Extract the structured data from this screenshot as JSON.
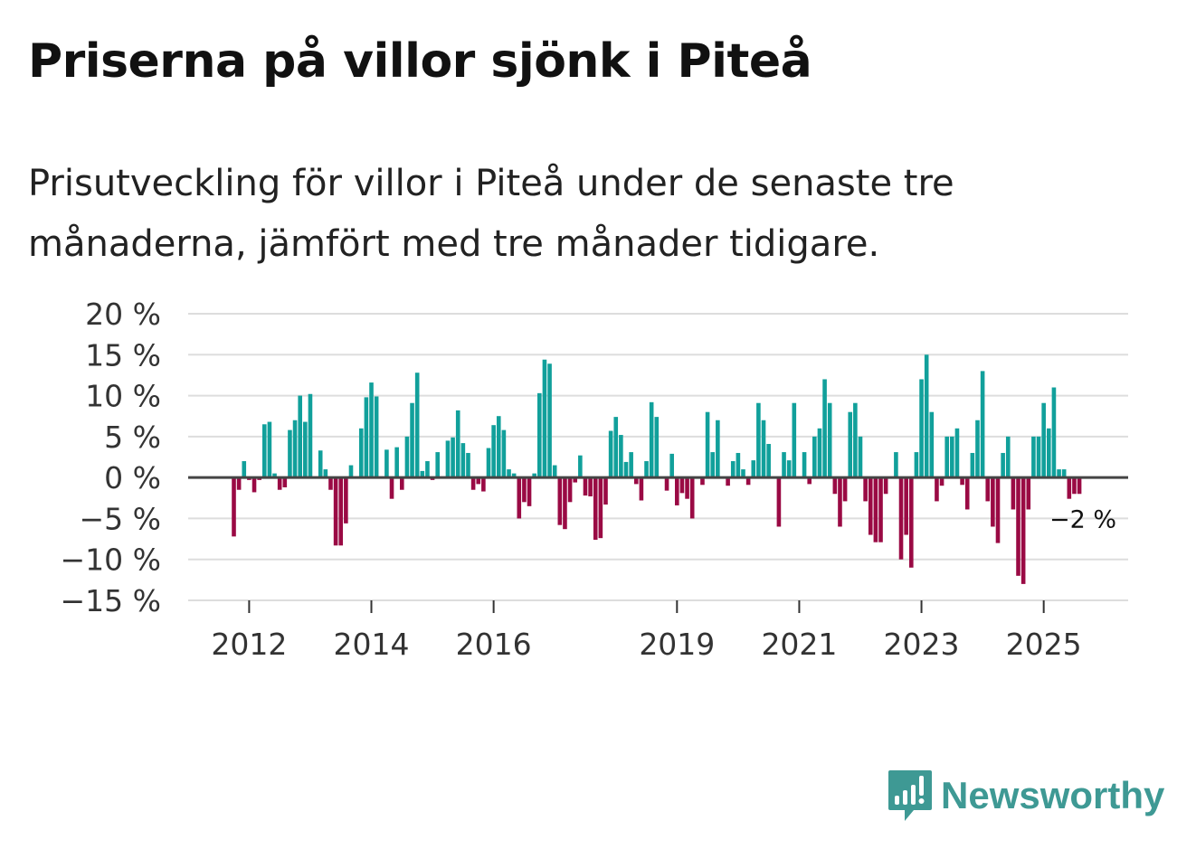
{
  "title": "Priserna på villor sjönk i Piteå",
  "subtitle": "Prisutveckling för villor i Piteå under de senaste tre månaderna, jämfört med tre månader tidigare.",
  "brand": {
    "name": "Newsworthy",
    "color": "#3e9994",
    "icon": "newsworthy-logo-icon"
  },
  "colors": {
    "positive": "#11a09b",
    "negative": "#9a0a44",
    "grid": "#dddddd",
    "zero_line": "#444444"
  },
  "chart_data": {
    "type": "bar",
    "title": "Priserna på villor sjönk i Piteå",
    "xlabel": "",
    "ylabel": "",
    "ylim": [
      -15,
      20
    ],
    "y_ticks": [
      20,
      15,
      10,
      5,
      0,
      -5,
      -10,
      -15
    ],
    "y_tick_labels": [
      "20 %",
      "15 %",
      "10 %",
      "5 %",
      "0 %",
      "−5 %",
      "−10 %",
      "−15 %"
    ],
    "x_ticks": [
      {
        "year": 2012,
        "label": "2012"
      },
      {
        "year": 2014,
        "label": "2014"
      },
      {
        "year": 2016,
        "label": "2016"
      },
      {
        "year": 2019,
        "label": "2019"
      },
      {
        "year": 2021,
        "label": "2021"
      },
      {
        "year": 2023,
        "label": "2023"
      },
      {
        "year": 2025,
        "label": "2025"
      }
    ],
    "start": {
      "year": 2011,
      "month": 10
    },
    "frequency": "monthly",
    "last_value_label": "−2 %",
    "values": [
      -7.2,
      -1.5,
      2.0,
      -0.3,
      -1.8,
      -0.3,
      6.5,
      6.8,
      0.5,
      -1.5,
      -1.2,
      5.8,
      7.0,
      10.0,
      6.8,
      10.2,
      0.0,
      3.3,
      1.0,
      -1.5,
      -8.3,
      -8.3,
      -5.6,
      1.5,
      0.0,
      6.0,
      9.8,
      11.6,
      9.9,
      0.0,
      3.4,
      -2.6,
      3.7,
      -1.5,
      5.0,
      9.1,
      12.8,
      0.8,
      2.0,
      -0.3,
      3.1,
      0.0,
      4.5,
      4.9,
      8.2,
      4.2,
      3.0,
      -1.5,
      -0.8,
      -1.7,
      3.6,
      6.4,
      7.5,
      5.8,
      1.0,
      0.5,
      -5.0,
      -3.0,
      -3.5,
      0.5,
      10.3,
      14.4,
      13.9,
      1.5,
      -5.8,
      -6.3,
      -3.0,
      -0.6,
      2.7,
      -2.2,
      -2.3,
      -7.6,
      -7.4,
      -3.3,
      5.7,
      7.4,
      5.2,
      1.9,
      3.1,
      -0.8,
      -2.8,
      2.0,
      9.2,
      7.4,
      0.0,
      -1.6,
      2.9,
      -3.4,
      -1.9,
      -2.6,
      -5.0,
      0.0,
      -0.9,
      8.0,
      3.1,
      7.0,
      0.0,
      -1.0,
      2.0,
      3.0,
      1.0,
      -0.9,
      2.1,
      9.1,
      7.0,
      4.1,
      0.0,
      -6.0,
      3.1,
      2.1,
      9.1,
      0.0,
      3.1,
      -0.8,
      5.0,
      6.0,
      12.0,
      9.1,
      -2.0,
      -6.0,
      -2.9,
      8.0,
      9.1,
      5.0,
      -2.9,
      -7.0,
      -7.9,
      -7.9,
      -2.0,
      0.0,
      3.1,
      -10.0,
      -7.0,
      -11.0,
      3.1,
      12.0,
      15.0,
      8.0,
      -2.9,
      -1.0,
      5.0,
      5.0,
      6.0,
      -0.9,
      -3.9,
      3.0,
      7.0,
      13.0,
      -2.9,
      -6.0,
      -8.0,
      3.0,
      5.0,
      -3.9,
      -12.0,
      -13.0,
      -3.9,
      5.0,
      5.0,
      9.1,
      6.0,
      11.0,
      1.0,
      1.0,
      -2.6,
      -2.0,
      -2.0
    ]
  }
}
